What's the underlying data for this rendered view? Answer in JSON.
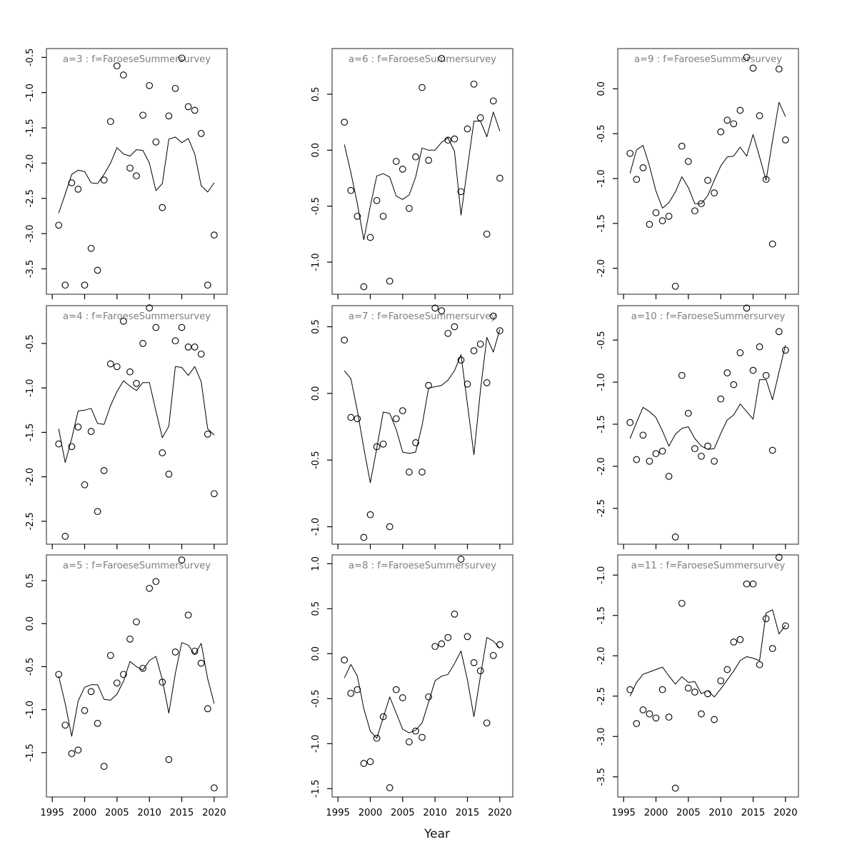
{
  "figure": {
    "xlabel": "Year",
    "title_color": "#7e7e7e",
    "data_color": "#000000",
    "box_color": "#545454",
    "x_tick_labels": [
      "1995",
      "2000",
      "2005",
      "2010",
      "2015",
      "2020"
    ],
    "x_tick_years": [
      1995,
      2000,
      2005,
      2010,
      2015,
      2020
    ],
    "xlim": [
      1994.1,
      2022.0
    ]
  },
  "chart_data": {
    "type": "scatter",
    "note": "3x3 panel grid; open-circle yearly observations plus smoother line per panel",
    "years": [
      1996,
      1997,
      1998,
      1999,
      2000,
      2001,
      2002,
      2003,
      2004,
      2005,
      2006,
      2007,
      2008,
      2009,
      2010,
      2011,
      2012,
      2013,
      2014,
      2015,
      2016,
      2017,
      2018,
      2019,
      2020
    ],
    "panels": [
      {
        "id": "a3",
        "title": "a=3 : f=FaroeseSummersurvey",
        "ylim": [
          -3.86,
          -0.375
        ],
        "ytick_labels": [
          "-0.5",
          "-1.0",
          "-1.5",
          "-2.0",
          "-2.5",
          "-3.0",
          "-3.5"
        ],
        "points": [
          -2.88,
          -3.73,
          -2.28,
          -2.37,
          -3.73,
          -3.21,
          -3.52,
          -2.24,
          -1.41,
          -0.62,
          -0.75,
          -2.07,
          -2.18,
          -1.32,
          -0.9,
          -1.7,
          -2.63,
          -1.33,
          -0.94,
          -0.51,
          -1.2,
          -1.25,
          -1.58,
          -3.73,
          -3.02
        ],
        "smoother": [
          -2.71,
          -2.44,
          -2.16,
          -2.1,
          -2.12,
          -2.28,
          -2.29,
          -2.16,
          -2.0,
          -1.78,
          -1.87,
          -1.9,
          -1.81,
          -1.82,
          -2.0,
          -2.39,
          -2.29,
          -1.66,
          -1.63,
          -1.71,
          -1.65,
          -1.87,
          -2.32,
          -2.41,
          -2.28
        ]
      },
      {
        "id": "a6",
        "title": "a=6 : f=FaroeseSummersurvey",
        "ylim": [
          -1.287,
          0.908
        ],
        "ytick_labels": [
          "0.5",
          "0.0",
          "-0.5",
          "-1.0"
        ],
        "points": [
          0.25,
          -0.36,
          -0.59,
          -1.22,
          -0.78,
          -0.45,
          -0.59,
          -1.17,
          -0.1,
          -0.17,
          -0.52,
          -0.06,
          0.56,
          -0.09,
          null,
          0.82,
          0.09,
          0.1,
          -0.37,
          0.19,
          0.59,
          0.29,
          -0.75,
          0.44,
          -0.25
        ],
        "smoother": [
          0.05,
          -0.2,
          -0.48,
          -0.8,
          -0.5,
          -0.23,
          -0.21,
          -0.24,
          -0.41,
          -0.44,
          -0.4,
          -0.24,
          0.02,
          0.0,
          0.0,
          0.07,
          0.11,
          -0.01,
          -0.58,
          -0.16,
          0.26,
          0.26,
          0.12,
          0.34,
          0.17
        ]
      },
      {
        "id": "a9",
        "title": "a=9 : f=FaroeseSummersurvey",
        "ylim": [
          -2.289,
          0.448
        ],
        "ytick_labels": [
          "0.0",
          "-0.5",
          "-1.0",
          "-1.5",
          "-2.0"
        ],
        "points": [
          -0.72,
          -1.01,
          -0.88,
          -1.51,
          -1.38,
          -1.47,
          -1.42,
          -2.2,
          -0.64,
          -0.81,
          -1.36,
          -1.28,
          -1.02,
          -1.16,
          -0.48,
          -0.35,
          -0.39,
          -0.24,
          0.35,
          0.23,
          -0.3,
          -1.01,
          -1.73,
          0.22,
          -0.57
        ],
        "smoother": [
          -0.94,
          -0.68,
          -0.63,
          -0.86,
          -1.14,
          -1.33,
          -1.27,
          -1.15,
          -0.98,
          -1.1,
          -1.28,
          -1.28,
          -1.19,
          -1.02,
          -0.86,
          -0.76,
          -0.75,
          -0.65,
          -0.75,
          -0.51,
          -0.76,
          -1.02,
          -0.58,
          -0.15,
          -0.31
        ]
      },
      {
        "id": "a4",
        "title": "a=4 : f=FaroeseSummersurvey",
        "ylim": [
          -2.758,
          -0.075
        ],
        "ytick_labels": [
          "-0.5",
          "-1.0",
          "-1.5",
          "-2.0",
          "-2.5"
        ],
        "points": [
          -1.63,
          -2.67,
          -1.66,
          -1.44,
          -2.09,
          -1.49,
          -2.39,
          -1.93,
          -0.73,
          -0.76,
          -0.25,
          -0.82,
          -0.95,
          -0.5,
          -0.1,
          -0.32,
          -1.73,
          -1.97,
          -0.47,
          -0.32,
          -0.54,
          -0.54,
          -0.62,
          -1.52,
          -2.19
        ],
        "smoother": [
          -1.46,
          -1.84,
          -1.57,
          -1.26,
          -1.25,
          -1.23,
          -1.4,
          -1.41,
          -1.2,
          -1.04,
          -0.92,
          -0.98,
          -1.03,
          -0.94,
          -0.94,
          -1.26,
          -1.56,
          -1.43,
          -0.76,
          -0.77,
          -0.86,
          -0.76,
          -0.93,
          -1.46,
          -1.53
        ]
      },
      {
        "id": "a7",
        "title": "a=7 : f=FaroeseSummersurvey",
        "ylim": [
          -1.131,
          0.658
        ],
        "ytick_labels": [
          "0.5",
          "0.0",
          "-0.5",
          "-1.0"
        ],
        "points": [
          0.4,
          -0.18,
          -0.19,
          -1.08,
          -0.91,
          -0.4,
          -0.38,
          -1.0,
          -0.19,
          -0.13,
          -0.59,
          -0.37,
          -0.59,
          0.06,
          0.64,
          0.62,
          0.45,
          0.5,
          0.25,
          0.07,
          0.32,
          0.37,
          0.08,
          0.58,
          0.47
        ],
        "smoother": [
          0.17,
          0.11,
          -0.13,
          -0.41,
          -0.67,
          -0.41,
          -0.14,
          -0.15,
          -0.27,
          -0.44,
          -0.45,
          -0.44,
          -0.24,
          0.04,
          0.05,
          0.06,
          0.1,
          0.17,
          0.29,
          -0.08,
          -0.46,
          0.02,
          0.42,
          0.31,
          0.48
        ]
      },
      {
        "id": "a10",
        "title": "a=10 : f=FaroeseSummersurvey",
        "ylim": [
          -2.926,
          -0.091
        ],
        "ytick_labels": [
          "-0.5",
          "-1.0",
          "-1.5",
          "-2.0",
          "-2.5"
        ],
        "points": [
          -1.48,
          -1.92,
          -1.63,
          -1.94,
          -1.85,
          -1.82,
          -2.12,
          -2.84,
          -0.92,
          -1.37,
          -1.79,
          -1.88,
          -1.76,
          -1.94,
          -1.2,
          -0.89,
          -1.03,
          -0.65,
          -0.12,
          -0.86,
          -0.58,
          -0.92,
          -1.81,
          -0.4,
          -0.62
        ],
        "smoother": [
          -1.67,
          -1.48,
          -1.3,
          -1.35,
          -1.42,
          -1.58,
          -1.76,
          -1.62,
          -1.55,
          -1.53,
          -1.67,
          -1.76,
          -1.8,
          -1.79,
          -1.61,
          -1.45,
          -1.39,
          -1.26,
          -1.35,
          -1.44,
          -0.97,
          -0.97,
          -1.21,
          -0.88,
          -0.56
        ]
      },
      {
        "id": "a5",
        "title": "a=5 : f=FaroeseSummersurvey",
        "ylim": [
          -2.016,
          0.799
        ],
        "ytick_labels": [
          "0.5",
          "0.0",
          "-0.5",
          "-1.0",
          "-1.5"
        ],
        "points": [
          -0.59,
          -1.18,
          -1.51,
          -1.47,
          -1.01,
          -0.79,
          -1.16,
          -1.66,
          -0.37,
          -0.69,
          -0.59,
          -0.18,
          0.02,
          -0.52,
          0.41,
          0.49,
          -0.68,
          -1.58,
          -0.33,
          0.74,
          0.1,
          -0.32,
          -0.46,
          -0.99,
          -1.91
        ],
        "smoother": [
          -0.61,
          -0.93,
          -1.31,
          -0.9,
          -0.74,
          -0.71,
          -0.71,
          -0.88,
          -0.89,
          -0.82,
          -0.67,
          -0.44,
          -0.5,
          -0.54,
          -0.43,
          -0.38,
          -0.65,
          -1.04,
          -0.58,
          -0.22,
          -0.25,
          -0.36,
          -0.23,
          -0.64,
          -0.93
        ]
      },
      {
        "id": "a8",
        "title": "a=8 : f=FaroeseSummersurvey",
        "ylim": [
          -1.593,
          1.098
        ],
        "ytick_labels": [
          "1.0",
          "0.5",
          "0.0",
          "-0.5",
          "-1.0",
          "-1.5"
        ],
        "points": [
          -0.07,
          -0.44,
          -0.4,
          -1.22,
          -1.2,
          -0.94,
          -0.7,
          -1.49,
          -0.4,
          -0.49,
          -0.98,
          -0.86,
          -0.93,
          -0.48,
          0.08,
          0.11,
          0.18,
          0.44,
          1.05,
          0.19,
          -0.1,
          -0.19,
          -0.77,
          -0.02,
          0.1
        ],
        "smoother": [
          -0.27,
          -0.12,
          -0.25,
          -0.61,
          -0.86,
          -0.94,
          -0.71,
          -0.48,
          -0.66,
          -0.84,
          -0.88,
          -0.85,
          -0.77,
          -0.54,
          -0.3,
          -0.25,
          -0.23,
          -0.11,
          0.03,
          -0.29,
          -0.7,
          -0.25,
          0.18,
          0.14,
          0.06
        ]
      },
      {
        "id": "a11",
        "title": "a=11 : f=FaroeseSummersurvey",
        "ylim": [
          -3.75,
          -0.75
        ],
        "ytick_labels": [
          "-1.0",
          "-1.5",
          "-2.0",
          "-2.5",
          "-3.0",
          "-3.5"
        ],
        "points": [
          -2.42,
          -2.84,
          -2.67,
          -2.72,
          -2.77,
          -2.42,
          -2.76,
          -3.64,
          -1.35,
          -2.4,
          -2.45,
          -2.72,
          -2.47,
          -2.79,
          -2.31,
          -2.17,
          -1.83,
          -1.8,
          -1.11,
          -1.11,
          -2.11,
          -1.54,
          -1.91,
          -0.78,
          -1.63
        ],
        "smoother": [
          -2.5,
          -2.33,
          -2.23,
          -2.2,
          -2.17,
          -2.14,
          -2.25,
          -2.35,
          -2.26,
          -2.33,
          -2.32,
          -2.47,
          -2.43,
          -2.51,
          -2.41,
          -2.3,
          -2.19,
          -2.06,
          -2.01,
          -2.03,
          -2.06,
          -1.47,
          -1.43,
          -1.73,
          -1.62
        ]
      }
    ]
  }
}
